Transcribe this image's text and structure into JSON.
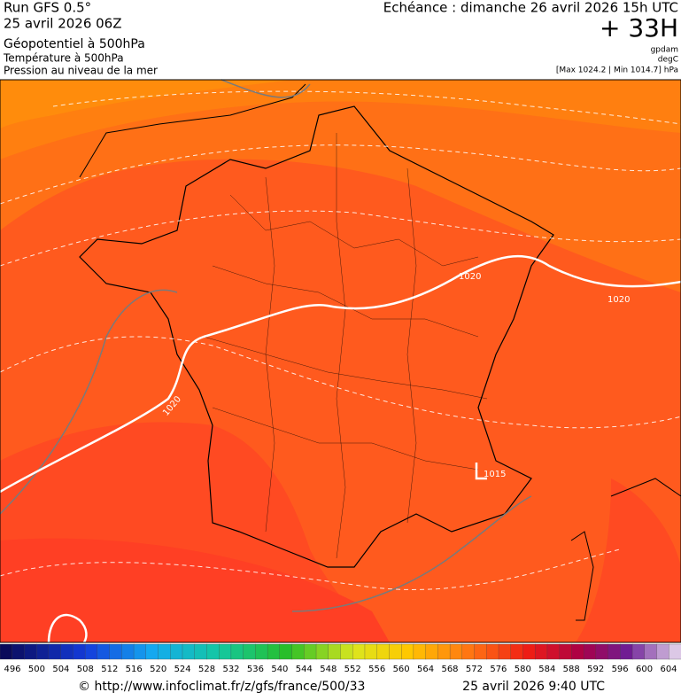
{
  "header": {
    "run": "Run GFS 0.5°",
    "run_date": "25 avril 2026 06Z",
    "field_main": "Géopotentiel à 500hPa",
    "field_temp": "Température à 500hPa",
    "field_pressure": "Pression au niveau de la mer",
    "valid_time": "Echéance : dimanche 26 avril 2026 15h UTC",
    "lead": "+ 33H",
    "unit_geo": "gpdam",
    "unit_temp": "degC",
    "pressure_range": "[Max 1024.2 | Min 1014.7] hPa"
  },
  "map": {
    "isobar_labels": [
      "1020",
      "1020",
      "1020",
      "1015"
    ]
  },
  "colorbar": {
    "ticks": [
      496,
      500,
      504,
      508,
      512,
      516,
      520,
      524,
      528,
      532,
      536,
      540,
      544,
      548,
      552,
      556,
      560,
      564,
      568,
      572,
      576,
      580,
      584,
      588,
      592,
      596,
      600,
      604
    ]
  },
  "footer": {
    "source": "© http://www.infoclimat.fr/z/gfs/france/500/33",
    "generated": "25 avril 2026  9:40 UTC"
  }
}
